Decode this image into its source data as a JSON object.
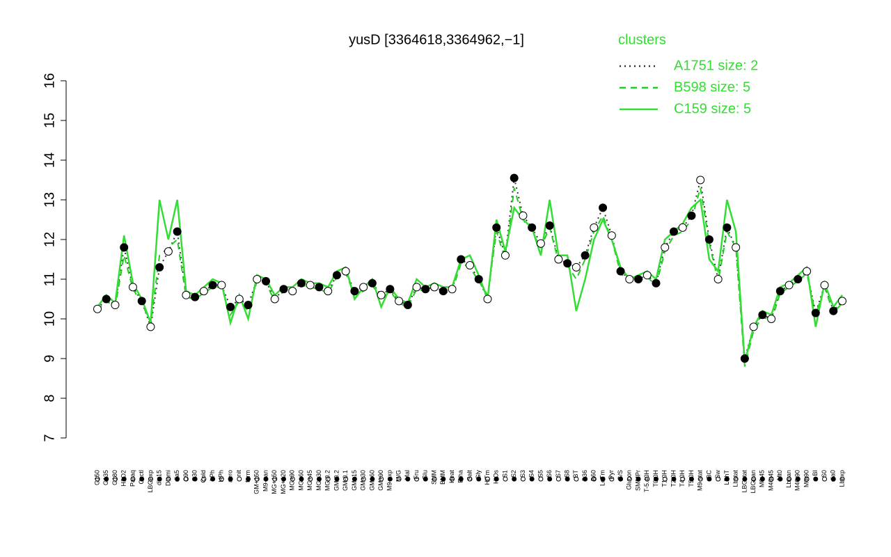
{
  "chart_data": {
    "type": "line",
    "title": "yusD [3364618,3364962,−1]",
    "legend_title": "clusters",
    "categories": [
      "G150",
      "G135",
      "G180",
      "H2O2",
      "Paraq",
      "Oxctl",
      "LBGexp",
      "dia15",
      "Diami",
      "dia5",
      "C90",
      "C30",
      "Cold",
      "LPh",
      "HPh",
      "aero",
      "nit",
      "ferm",
      "GM+150",
      "M9-tran",
      "MG+150",
      "MG+120",
      "MG+90",
      "MG+60",
      "MG+45",
      "MG+30",
      "MG-0.2",
      "GM-0.2",
      "GM-0.1",
      "GM+15",
      "GM+30",
      "GM+60",
      "GM+90",
      "M9-exp",
      "M/G",
      "Mal",
      "Fru",
      "Glu",
      "SMM",
      "BMM",
      "Heat",
      "Etha",
      "Salt",
      "Gly",
      "HiTm",
      "HiOs",
      "S1",
      "S2",
      "S3",
      "S4",
      "S5",
      "S6",
      "S7",
      "S8",
      "BT",
      "B36",
      "B60",
      "LoTm",
      "Pyr",
      "G/S",
      "Glucon",
      "SMMPr",
      "T-5.40H",
      "T0.0H",
      "T1.0H",
      "T2.0H",
      "T4.0H",
      "T5.0H",
      "M9-stat",
      "BC",
      "Sw",
      "LPhT",
      "Lbstat",
      "LBGstat",
      "LBGtran",
      "M0t45",
      "M40t45",
      "Mt0",
      "Lbtran",
      "M40t90",
      "M0t90",
      "BI",
      "S0",
      "dia0",
      "Lbexp"
    ],
    "points": [
      10.25,
      10.5,
      10.35,
      11.8,
      10.8,
      10.45,
      9.8,
      11.3,
      11.7,
      12.2,
      10.6,
      10.55,
      10.7,
      10.85,
      10.85,
      10.3,
      10.5,
      10.35,
      11.0,
      10.95,
      10.5,
      10.75,
      10.7,
      10.9,
      10.85,
      10.8,
      10.7,
      11.1,
      11.2,
      10.7,
      10.8,
      10.9,
      10.6,
      10.75,
      10.45,
      10.35,
      10.8,
      10.75,
      10.8,
      10.7,
      10.75,
      11.5,
      11.35,
      11.0,
      10.5,
      12.3,
      11.6,
      13.55,
      12.6,
      12.3,
      11.9,
      12.35,
      11.5,
      11.4,
      11.3,
      11.6,
      12.3,
      12.8,
      12.1,
      11.2,
      11.0,
      11.0,
      11.1,
      10.9,
      11.8,
      12.2,
      12.3,
      12.6,
      13.5,
      12.0,
      11.0,
      12.3,
      11.8,
      9.0,
      9.8,
      10.1,
      10.0,
      10.7,
      10.85,
      11.0,
      11.2,
      10.15,
      10.85,
      10.2,
      10.45
    ],
    "point_fills": [
      "#ffffff",
      "#000000"
    ],
    "series": [
      {
        "name": "A1751 size: 2",
        "color": "#333333",
        "style": "dotted",
        "values": [
          10.25,
          10.5,
          10.35,
          11.8,
          10.8,
          10.45,
          9.8,
          11.3,
          11.7,
          12.2,
          10.6,
          10.55,
          10.7,
          10.85,
          10.85,
          10.3,
          10.5,
          10.35,
          11.0,
          10.95,
          10.5,
          10.75,
          10.7,
          10.9,
          10.85,
          10.8,
          10.7,
          11.1,
          11.2,
          10.7,
          10.8,
          10.9,
          10.6,
          10.75,
          10.45,
          10.35,
          10.8,
          10.75,
          10.8,
          10.7,
          10.75,
          11.5,
          11.35,
          11.0,
          10.5,
          12.3,
          11.6,
          13.55,
          12.6,
          12.3,
          11.9,
          12.35,
          11.5,
          11.4,
          11.3,
          11.6,
          12.3,
          12.8,
          12.1,
          11.2,
          11.0,
          11.0,
          11.1,
          10.9,
          11.8,
          12.2,
          12.3,
          12.6,
          13.5,
          12.0,
          11.0,
          12.3,
          11.8,
          9.0,
          9.8,
          10.1,
          10.0,
          10.7,
          10.85,
          11.0,
          11.2,
          10.15,
          10.85,
          10.2,
          10.45
        ]
      },
      {
        "name": "B598 size: 5",
        "color": "#22cc22",
        "style": "dashed",
        "values": [
          10.2,
          10.45,
          10.3,
          11.6,
          10.75,
          10.4,
          9.9,
          11.6,
          11.8,
          12.0,
          10.55,
          10.5,
          10.65,
          10.8,
          10.8,
          10.1,
          10.45,
          10.2,
          10.95,
          10.9,
          10.45,
          10.7,
          10.65,
          10.85,
          10.8,
          10.75,
          10.65,
          11.05,
          11.15,
          10.6,
          10.7,
          10.85,
          10.5,
          10.7,
          10.4,
          10.3,
          10.75,
          10.7,
          10.75,
          10.65,
          10.7,
          11.4,
          11.3,
          10.95,
          10.6,
          12.2,
          11.5,
          13.3,
          12.5,
          12.2,
          11.8,
          12.3,
          11.45,
          11.35,
          11.0,
          11.5,
          12.2,
          12.6,
          12.0,
          11.15,
          10.95,
          10.95,
          11.05,
          10.85,
          11.7,
          12.1,
          12.2,
          12.5,
          13.3,
          11.9,
          10.95,
          12.2,
          11.8,
          8.8,
          9.7,
          10.05,
          9.95,
          10.65,
          10.8,
          10.95,
          11.15,
          10.1,
          10.8,
          10.15,
          10.4
        ]
      },
      {
        "name": "C159 size: 5",
        "color": "#33dd33",
        "style": "solid",
        "values": [
          10.3,
          10.6,
          10.4,
          12.1,
          10.9,
          10.5,
          9.9,
          13.0,
          12.0,
          13.0,
          10.7,
          10.6,
          10.8,
          11.0,
          10.9,
          9.9,
          10.6,
          10.0,
          11.1,
          11.0,
          10.6,
          10.8,
          10.8,
          11.0,
          10.9,
          10.9,
          10.8,
          11.2,
          11.3,
          10.5,
          10.8,
          11.0,
          10.3,
          10.8,
          10.5,
          10.4,
          11.0,
          10.8,
          10.9,
          10.8,
          10.8,
          11.5,
          11.6,
          11.1,
          10.5,
          12.5,
          11.7,
          12.8,
          12.5,
          12.3,
          11.6,
          13.0,
          11.6,
          11.6,
          10.2,
          11.0,
          12.0,
          12.5,
          12.0,
          11.3,
          11.0,
          11.1,
          11.2,
          11.0,
          12.0,
          12.2,
          12.4,
          12.8,
          13.0,
          11.5,
          11.2,
          13.0,
          12.2,
          8.9,
          9.8,
          10.2,
          10.1,
          10.8,
          10.9,
          11.1,
          11.3,
          9.8,
          10.9,
          10.3,
          10.6
        ]
      }
    ],
    "ylim": [
      7,
      16
    ],
    "yticks": [
      7,
      8,
      9,
      10,
      11,
      12,
      13,
      14,
      15,
      16
    ],
    "legend": "top-right"
  }
}
